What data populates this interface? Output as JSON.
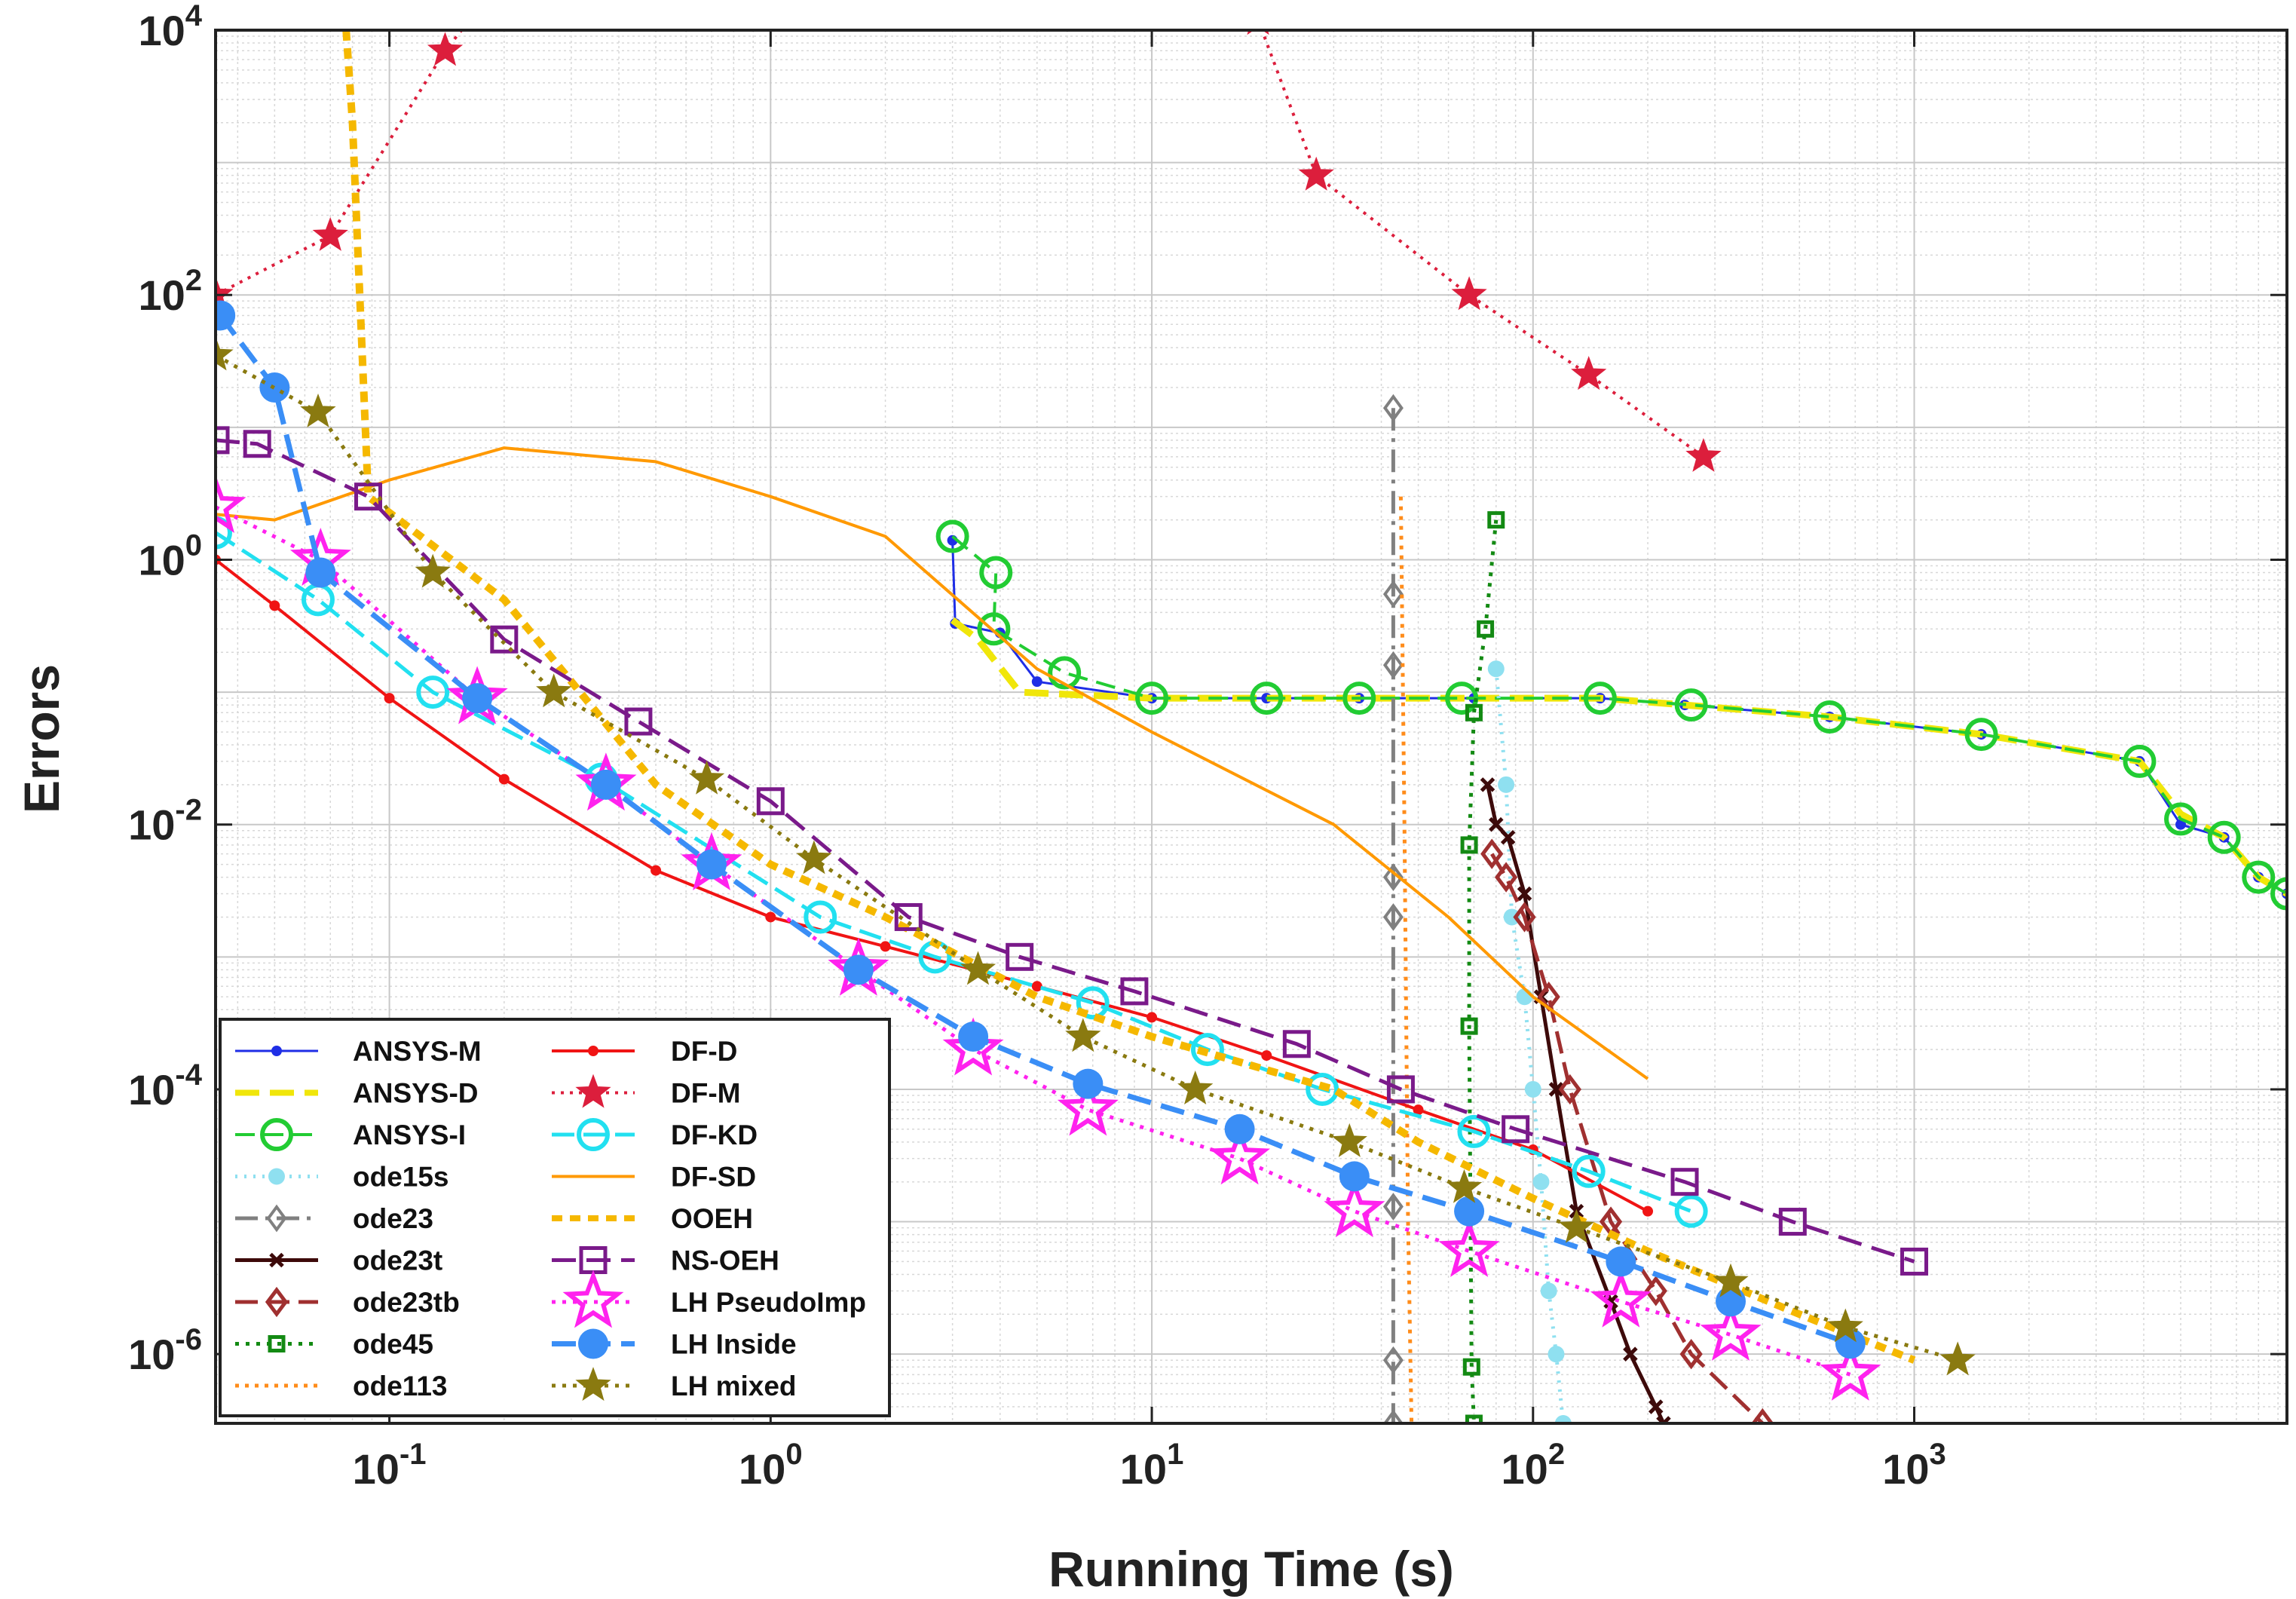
{
  "chart_data": {
    "type": "line",
    "title": "",
    "xlabel": "Running Time (s)",
    "ylabel": "Errors",
    "xscale": "log",
    "yscale": "log",
    "xlim": [
      0.035,
      9500
    ],
    "ylim": [
      3e-07,
      10000
    ],
    "grid": true,
    "legend_position": "bottom-left",
    "x_ticks": [
      {
        "value": 0.1,
        "base": "10",
        "exp": "-1"
      },
      {
        "value": 1,
        "base": "10",
        "exp": "0"
      },
      {
        "value": 10,
        "base": "10",
        "exp": "1"
      },
      {
        "value": 100,
        "base": "10",
        "exp": "2"
      },
      {
        "value": 1000,
        "base": "10",
        "exp": "3"
      }
    ],
    "y_ticks": [
      {
        "value": 1e-06,
        "base": "10",
        "exp": "-6"
      },
      {
        "value": 0.0001,
        "base": "10",
        "exp": "-4"
      },
      {
        "value": 0.01,
        "base": "10",
        "exp": "-2"
      },
      {
        "value": 1,
        "base": "10",
        "exp": "0"
      },
      {
        "value": 100,
        "base": "10",
        "exp": "2"
      },
      {
        "value": 10000,
        "base": "10",
        "exp": "4"
      }
    ],
    "series": [
      {
        "name": "ANSYS-M",
        "color": "#1f2ee6",
        "dash": "",
        "width": 3,
        "marker": "dot",
        "points": [
          [
            3.0,
            1.4
          ],
          [
            3.05,
            0.33
          ],
          [
            4.0,
            0.28
          ],
          [
            5.0,
            0.12
          ],
          [
            10,
            0.09
          ],
          [
            20,
            0.09
          ],
          [
            35,
            0.09
          ],
          [
            70,
            0.09
          ],
          [
            150,
            0.09
          ],
          [
            250,
            0.08
          ],
          [
            600,
            0.065
          ],
          [
            1500,
            0.048
          ],
          [
            3900,
            0.03
          ],
          [
            5000,
            0.01
          ],
          [
            6500,
            0.008
          ],
          [
            8000,
            0.004
          ],
          [
            9500,
            0.003
          ]
        ]
      },
      {
        "name": "ANSYS-D",
        "color": "#f0e60a",
        "dash": "32,14",
        "width": 9,
        "marker": "none",
        "points": [
          [
            3.0,
            0.35
          ],
          [
            3.5,
            0.25
          ],
          [
            4.5,
            0.1
          ],
          [
            10,
            0.09
          ],
          [
            35,
            0.09
          ],
          [
            70,
            0.09
          ],
          [
            150,
            0.09
          ],
          [
            250,
            0.08
          ],
          [
            600,
            0.065
          ],
          [
            1500,
            0.048
          ],
          [
            3900,
            0.03
          ],
          [
            5000,
            0.012
          ],
          [
            6500,
            0.008
          ],
          [
            8000,
            0.004
          ],
          [
            9500,
            0.003
          ]
        ]
      },
      {
        "name": "ANSYS-I",
        "color": "#22cc33",
        "dash": "26,12",
        "width": 4,
        "marker": "circle-o",
        "points": [
          [
            3.0,
            1.5
          ],
          [
            3.9,
            0.8
          ],
          [
            3.85,
            0.3
          ],
          [
            5.9,
            0.14
          ],
          [
            10,
            0.09
          ],
          [
            20,
            0.09
          ],
          [
            35,
            0.09
          ],
          [
            65,
            0.09
          ],
          [
            150,
            0.09
          ],
          [
            260,
            0.08
          ],
          [
            600,
            0.065
          ],
          [
            1500,
            0.048
          ],
          [
            3900,
            0.03
          ],
          [
            5000,
            0.011
          ],
          [
            6500,
            0.008
          ],
          [
            8000,
            0.004
          ],
          [
            9500,
            0.003
          ]
        ]
      },
      {
        "name": "ode15s",
        "color": "#8fe0f0",
        "dash": "3,9",
        "width": 5,
        "marker": "dot-lg",
        "points": [
          [
            80,
            0.15
          ],
          [
            85,
            0.02
          ],
          [
            88,
            0.002
          ],
          [
            95,
            0.0005
          ],
          [
            100,
            0.0001
          ],
          [
            105,
            2e-05
          ],
          [
            110,
            3e-06
          ],
          [
            115,
            1e-06
          ],
          [
            120,
            3e-07
          ]
        ]
      },
      {
        "name": "ode23",
        "color": "#808080",
        "dash": "30,10,5,10",
        "width": 5,
        "marker": "diamond-o",
        "points": [
          [
            43,
            14
          ],
          [
            43,
            0.55
          ],
          [
            43,
            0.16
          ],
          [
            43,
            0.004
          ],
          [
            43,
            0.002
          ],
          [
            43,
            1.3e-05
          ],
          [
            43,
            9e-07
          ],
          [
            43,
            3e-07
          ]
        ]
      },
      {
        "name": "ode23t",
        "color": "#3d0a0a",
        "dash": "",
        "width": 5,
        "marker": "x",
        "points": [
          [
            76,
            0.02
          ],
          [
            80,
            0.01
          ],
          [
            86,
            0.008
          ],
          [
            95,
            0.003
          ],
          [
            105,
            0.0005
          ],
          [
            115,
            0.0001
          ],
          [
            130,
            1.2e-05
          ],
          [
            160,
            2.5e-06
          ],
          [
            180,
            1e-06
          ],
          [
            210,
            4e-07
          ],
          [
            220,
            3e-07
          ]
        ]
      },
      {
        "name": "ode23tb",
        "color": "#a03030",
        "dash": "30,12",
        "width": 5,
        "marker": "diamond",
        "points": [
          [
            78,
            0.006
          ],
          [
            85,
            0.004
          ],
          [
            95,
            0.002
          ],
          [
            110,
            0.0005
          ],
          [
            125,
            0.0001
          ],
          [
            160,
            1e-05
          ],
          [
            210,
            3e-06
          ],
          [
            260,
            1e-06
          ],
          [
            400,
            3e-07
          ]
        ]
      },
      {
        "name": "ode45",
        "color": "#138a13",
        "dash": "5,9",
        "width": 5,
        "marker": "square",
        "points": [
          [
            80,
            2.0
          ],
          [
            75,
            0.3
          ],
          [
            70,
            0.07
          ],
          [
            68,
            0.007
          ],
          [
            68,
            0.0003
          ],
          [
            69,
            8e-07
          ],
          [
            70,
            3e-07
          ]
        ]
      },
      {
        "name": "ode113",
        "color": "#ff8c1a",
        "dash": "5,8",
        "width": 5,
        "marker": "none",
        "points": [
          [
            45,
            3.0
          ],
          [
            46,
            0.01
          ],
          [
            47,
            1e-05
          ],
          [
            48,
            3e-07
          ]
        ]
      },
      {
        "name": "DF-D",
        "color": "#f01414",
        "dash": "",
        "width": 4,
        "marker": "dot",
        "points": [
          [
            0.035,
            1.0
          ],
          [
            0.05,
            0.45
          ],
          [
            0.1,
            0.09
          ],
          [
            0.2,
            0.022
          ],
          [
            0.5,
            0.0045
          ],
          [
            1.0,
            0.002
          ],
          [
            2.0,
            0.0012
          ],
          [
            5.0,
            0.0006
          ],
          [
            10,
            0.00035
          ],
          [
            20,
            0.00018
          ],
          [
            50,
            7e-05
          ],
          [
            100,
            3.5e-05
          ],
          [
            200,
            1.2e-05
          ]
        ]
      },
      {
        "name": "DF-M",
        "color": "#dc1e3c",
        "dash": "4,8",
        "width": 4,
        "marker": "star",
        "points": [
          [
            0.035,
            100
          ],
          [
            0.07,
            280
          ],
          [
            0.14,
            7000
          ],
          [
            0.2,
            25000
          ]
        ]
      },
      {
        "name": "DF-M",
        "color": "#dc1e3c",
        "dash": "4,8",
        "width": 4,
        "marker": "star",
        "points": [
          [
            19,
            12000
          ],
          [
            27,
            800
          ],
          [
            68,
            100
          ],
          [
            140,
            25
          ],
          [
            280,
            6
          ]
        ]
      },
      {
        "name": "DF-KD",
        "color": "#22e0f0",
        "dash": "30,12",
        "width": 5,
        "marker": "circle-o",
        "points": [
          [
            0.035,
            1.6
          ],
          [
            0.065,
            0.5
          ],
          [
            0.13,
            0.1
          ],
          [
            0.36,
            0.022
          ],
          [
            1.35,
            0.002
          ],
          [
            2.7,
            0.001
          ],
          [
            7,
            0.00045
          ],
          [
            14,
            0.0002
          ],
          [
            28,
            0.0001
          ],
          [
            70,
            4.8e-05
          ],
          [
            140,
            2.4e-05
          ],
          [
            260,
            1.2e-05
          ]
        ]
      },
      {
        "name": "DF-SD",
        "color": "#ff9900",
        "dash": "",
        "width": 4,
        "marker": "none",
        "points": [
          [
            0.035,
            2.2
          ],
          [
            0.05,
            2.0
          ],
          [
            0.1,
            4.0
          ],
          [
            0.2,
            7.0
          ],
          [
            0.5,
            5.5
          ],
          [
            1.0,
            3.0
          ],
          [
            2.0,
            1.5
          ],
          [
            5.0,
            0.15
          ],
          [
            10,
            0.05
          ],
          [
            30,
            0.01
          ],
          [
            60,
            0.002
          ],
          [
            100,
            0.0005
          ],
          [
            200,
            0.00012
          ]
        ]
      },
      {
        "name": "OOEH",
        "color": "#f5b800",
        "dash": "14,10",
        "width": 10,
        "marker": "none",
        "points": [
          [
            0.077,
            10000
          ],
          [
            0.08,
            2000
          ],
          [
            0.088,
            3
          ],
          [
            0.2,
            0.5
          ],
          [
            0.5,
            0.02
          ],
          [
            1.0,
            0.005
          ],
          [
            2.0,
            0.002
          ],
          [
            5.0,
            0.0005
          ],
          [
            10,
            0.00025
          ],
          [
            30,
            0.0001
          ],
          [
            50,
            4e-05
          ],
          [
            100,
            1.5e-05
          ],
          [
            200,
            6e-06
          ],
          [
            500,
            2e-06
          ],
          [
            1000,
            9e-07
          ]
        ]
      },
      {
        "name": "NS-OEH",
        "color": "#7a1a8a",
        "dash": "32,14",
        "width": 5,
        "marker": "square-o",
        "points": [
          [
            0.035,
            8
          ],
          [
            0.045,
            7.5
          ],
          [
            0.088,
            3
          ],
          [
            0.2,
            0.25
          ],
          [
            0.45,
            0.06
          ],
          [
            1.0,
            0.015
          ],
          [
            2.3,
            0.002
          ],
          [
            4.5,
            0.001
          ],
          [
            9,
            0.00055
          ],
          [
            24,
            0.00022
          ],
          [
            45,
            0.0001
          ],
          [
            90,
            5e-05
          ],
          [
            250,
            2e-05
          ],
          [
            480,
            1e-05
          ],
          [
            1000,
            5e-06
          ]
        ]
      },
      {
        "name": "LH PseudoImp",
        "color": "#ff22ee",
        "dash": "5,9",
        "width": 5,
        "marker": "star-lg",
        "points": [
          [
            0.035,
            2.5
          ],
          [
            0.066,
            1.0
          ],
          [
            0.17,
            0.09
          ],
          [
            0.37,
            0.02
          ],
          [
            0.7,
            0.005
          ],
          [
            1.7,
            0.0008
          ],
          [
            3.4,
            0.0002
          ],
          [
            6.8,
            7e-05
          ],
          [
            17,
            3e-05
          ],
          [
            34,
            1.2e-05
          ],
          [
            68,
            6e-06
          ],
          [
            170,
            2.5e-06
          ],
          [
            330,
            1.4e-06
          ],
          [
            680,
            7e-07
          ]
        ]
      },
      {
        "name": "LH Inside",
        "color": "#3a8ef6",
        "dash": "32,14",
        "width": 7,
        "marker": "dot-xl",
        "points": [
          [
            0.036,
            70
          ],
          [
            0.05,
            20
          ],
          [
            0.066,
            0.8
          ],
          [
            0.17,
            0.09
          ],
          [
            0.37,
            0.02
          ],
          [
            0.7,
            0.005
          ],
          [
            1.7,
            0.0008
          ],
          [
            3.4,
            0.00025
          ],
          [
            6.8,
            0.00011
          ],
          [
            17,
            5e-05
          ],
          [
            34,
            2.2e-05
          ],
          [
            68,
            1.2e-05
          ],
          [
            170,
            5e-06
          ],
          [
            330,
            2.5e-06
          ],
          [
            680,
            1.2e-06
          ]
        ]
      },
      {
        "name": "LH mixed",
        "color": "#8a7a10",
        "dash": "5,9",
        "width": 5,
        "marker": "star",
        "points": [
          [
            0.035,
            35
          ],
          [
            0.065,
            13
          ],
          [
            0.13,
            0.8
          ],
          [
            0.27,
            0.1
          ],
          [
            0.68,
            0.022
          ],
          [
            1.3,
            0.0055
          ],
          [
            3.5,
            0.0008
          ],
          [
            6.6,
            0.00025
          ],
          [
            13,
            0.0001
          ],
          [
            33,
            4e-05
          ],
          [
            66,
            1.8e-05
          ],
          [
            130,
            9e-06
          ],
          [
            330,
            3.5e-06
          ],
          [
            660,
            1.6e-06
          ],
          [
            1300,
            9e-07
          ]
        ]
      }
    ],
    "legend": {
      "col1": [
        "ANSYS-M",
        "ANSYS-D",
        "ANSYS-I",
        "ode15s",
        "ode23",
        "ode23t",
        "ode23tb",
        "ode45",
        "ode113"
      ],
      "col2": [
        "DF-D",
        "DF-M",
        "DF-KD",
        "DF-SD",
        "OOEH",
        "NS-OEH",
        "LH PseudoImp",
        "LH Inside",
        "LH mixed"
      ]
    }
  }
}
